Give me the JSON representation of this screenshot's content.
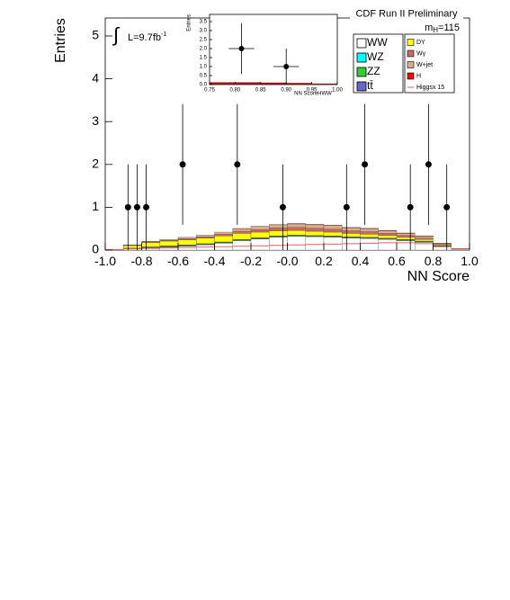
{
  "chart_data": [
    {
      "type": "histogram",
      "title": "CDF Run II Preliminary",
      "ylabel": "Entries",
      "xlabel": "NN Score",
      "lumi": {
        "symbol": "∫",
        "text": "L=9.7fb",
        "sup": "-1"
      },
      "mass": {
        "text": "m",
        "sub": "H",
        "rest": "=115"
      },
      "bins": [
        -1.0,
        -0.9,
        -0.8,
        -0.7,
        -0.6,
        -0.5,
        -0.4,
        -0.3,
        -0.2,
        -0.1,
        0.0,
        0.1,
        0.2,
        0.3,
        0.4,
        0.5,
        0.6,
        0.7,
        0.8,
        0.9,
        1.0
      ],
      "series": [
        {
          "name": "WW",
          "color": "#ffffff",
          "values": [
            0.01,
            0.03,
            0.05,
            0.07,
            0.09,
            0.12,
            0.16,
            0.22,
            0.26,
            0.3,
            0.32,
            0.31,
            0.3,
            0.28,
            0.27,
            0.25,
            0.22,
            0.18,
            0.09,
            0.02
          ]
        },
        {
          "name": "WZ",
          "color": "#00ffff",
          "values": [
            0,
            0.005,
            0.01,
            0.01,
            0.01,
            0.01,
            0.01,
            0.01,
            0.01,
            0.01,
            0.01,
            0.01,
            0.01,
            0.01,
            0.01,
            0.01,
            0.01,
            0.01,
            0.005,
            0
          ]
        },
        {
          "name": "ZZ",
          "color": "#33cc33",
          "values": [
            0,
            0.005,
            0.01,
            0.01,
            0.01,
            0.01,
            0.01,
            0.01,
            0.01,
            0.01,
            0.01,
            0.01,
            0.01,
            0.01,
            0.01,
            0.01,
            0.01,
            0.01,
            0.005,
            0
          ]
        },
        {
          "name": "tt̄",
          "color": "#6666cc",
          "values": [
            0,
            0.005,
            0.005,
            0.01,
            0.01,
            0.01,
            0.01,
            0.01,
            0.01,
            0.01,
            0.01,
            0.01,
            0.01,
            0.01,
            0.01,
            0.01,
            0.01,
            0.01,
            0.005,
            0
          ]
        },
        {
          "name": "DY",
          "color": "#ffff00",
          "values": [
            0.005,
            0.06,
            0.1,
            0.11,
            0.12,
            0.13,
            0.14,
            0.14,
            0.13,
            0.12,
            0.11,
            0.1,
            0.09,
            0.08,
            0.07,
            0.06,
            0.05,
            0.04,
            0.02,
            0.01
          ]
        },
        {
          "name": "Wγ",
          "color": "#cc6666",
          "values": [
            0,
            0.01,
            0.02,
            0.02,
            0.03,
            0.03,
            0.04,
            0.05,
            0.06,
            0.07,
            0.07,
            0.07,
            0.07,
            0.06,
            0.06,
            0.05,
            0.04,
            0.03,
            0.01,
            0
          ]
        },
        {
          "name": "W+jet",
          "color": "#d8b088",
          "values": [
            0,
            0.01,
            0.01,
            0.02,
            0.03,
            0.04,
            0.05,
            0.06,
            0.07,
            0.07,
            0.08,
            0.08,
            0.08,
            0.07,
            0.07,
            0.06,
            0.05,
            0.04,
            0.02,
            0.01
          ]
        },
        {
          "name": "H",
          "color": "#ff0000",
          "values": [
            0,
            0,
            0,
            0,
            0,
            0,
            0,
            0.005,
            0.005,
            0.005,
            0.01,
            0.01,
            0.01,
            0.01,
            0.01,
            0.01,
            0.01,
            0.01,
            0.005,
            0
          ]
        }
      ],
      "signal_line": {
        "name": "Higgsx 15",
        "color": "#e06060",
        "values": [
          0.01,
          0.03,
          0.04,
          0.05,
          0.06,
          0.07,
          0.08,
          0.09,
          0.1,
          0.11,
          0.12,
          0.13,
          0.14,
          0.15,
          0.16,
          0.17,
          0.17,
          0.15,
          0.08,
          0.02
        ]
      },
      "points": {
        "x": [
          -0.875,
          -0.825,
          -0.775,
          -0.575,
          -0.275,
          -0.025,
          0.325,
          0.425,
          0.675,
          0.775,
          0.875
        ],
        "values": [
          1,
          1,
          1,
          2,
          2,
          1,
          1,
          2,
          1,
          2,
          1
        ],
        "errors": [
          1.0,
          1.0,
          1.0,
          1.41,
          1.41,
          1.0,
          1.0,
          1.41,
          1.0,
          1.41,
          1.0
        ]
      },
      "xlim": [
        -1,
        1
      ],
      "ylim": [
        0,
        5.42
      ],
      "xticks": [
        {
          "value": -1,
          "label": "-1.0"
        },
        -0.8,
        -0.6,
        -0.4,
        -0.2,
        {
          "value": 0,
          "label": "-0.0"
        },
        0.2,
        0.4,
        0.6,
        0.8,
        {
          "value": 1,
          "label": "1.0"
        }
      ],
      "yticks": [
        0,
        1,
        2,
        3,
        4,
        5
      ]
    },
    {
      "type": "histogram",
      "ylabel": "Entries",
      "xlabel": "NN ScoreHWW",
      "bins": [
        0.75,
        0.8,
        0.85,
        0.9,
        0.95,
        1.0
      ],
      "series": [
        {
          "color": "#aa0000",
          "values": [
            0.12,
            0.12,
            0.1,
            0.08,
            0.05
          ]
        }
      ],
      "points": {
        "x": [
          0.8125,
          0.9
        ],
        "values": [
          2,
          1
        ],
        "errors": [
          1.41,
          1.0
        ],
        "xerrors": [
          0.025,
          0.025
        ]
      },
      "xlim": [
        0.75,
        1.0
      ],
      "ylim": [
        0,
        3.9
      ],
      "xticks": [
        0.75,
        {
          "value": 0.8,
          "label": "0.80"
        },
        0.85,
        {
          "value": 0.9,
          "label": "0.90"
        },
        0.95,
        {
          "value": 1,
          "label": "1.00"
        }
      ],
      "yticks": [
        {
          "value": 0,
          "label": "0.0"
        },
        0.5,
        {
          "value": 1,
          "label": "1.0"
        },
        1.5,
        {
          "value": 2,
          "label": "2.0"
        },
        2.5,
        {
          "value": 3,
          "label": "3.0"
        },
        3.5
      ]
    }
  ]
}
